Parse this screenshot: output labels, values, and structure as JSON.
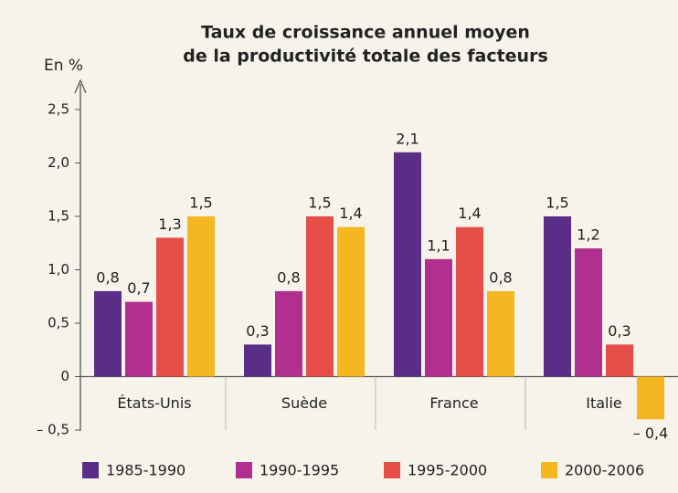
{
  "chart_data": {
    "type": "bar",
    "title": [
      "Taux de croissance annuel moyen",
      "de la productivité totale des facteurs"
    ],
    "y_label": "En %",
    "categories": [
      "États-Unis",
      "Suède",
      "France",
      "Italie"
    ],
    "series": [
      {
        "name": "1985-1990",
        "color": "#5a2d86",
        "values": [
          0.8,
          0.3,
          2.1,
          1.5
        ],
        "value_labels": [
          "0,8",
          "0,3",
          "2,1",
          "1,5"
        ]
      },
      {
        "name": "1990-1995",
        "color": "#b1308f",
        "values": [
          0.7,
          0.8,
          1.1,
          1.2
        ],
        "value_labels": [
          "0,7",
          "0,8",
          "1,1",
          "1,2"
        ]
      },
      {
        "name": "1995-2000",
        "color": "#e64e48",
        "values": [
          1.3,
          1.5,
          1.4,
          0.3
        ],
        "value_labels": [
          "1,3",
          "1,5",
          "1,4",
          "0,3"
        ]
      },
      {
        "name": "2000-2006",
        "color": "#f4b722",
        "values": [
          1.5,
          1.4,
          0.8,
          -0.4
        ],
        "value_labels": [
          "1,5",
          "1,4",
          "0,8",
          "– 0,4"
        ]
      }
    ],
    "ylim": [
      -0.5,
      2.5
    ],
    "yticks": [
      {
        "value": -0.5,
        "label": "– 0,5"
      },
      0,
      {
        "value": 0.5,
        "label": "0,5"
      },
      {
        "value": 1.0,
        "label": "1,0"
      },
      {
        "value": 1.5,
        "label": "1,5"
      },
      {
        "value": 2.0,
        "label": "2,0"
      },
      {
        "value": 2.5,
        "label": "2,5"
      }
    ],
    "grid": false,
    "legend": "bottom"
  }
}
